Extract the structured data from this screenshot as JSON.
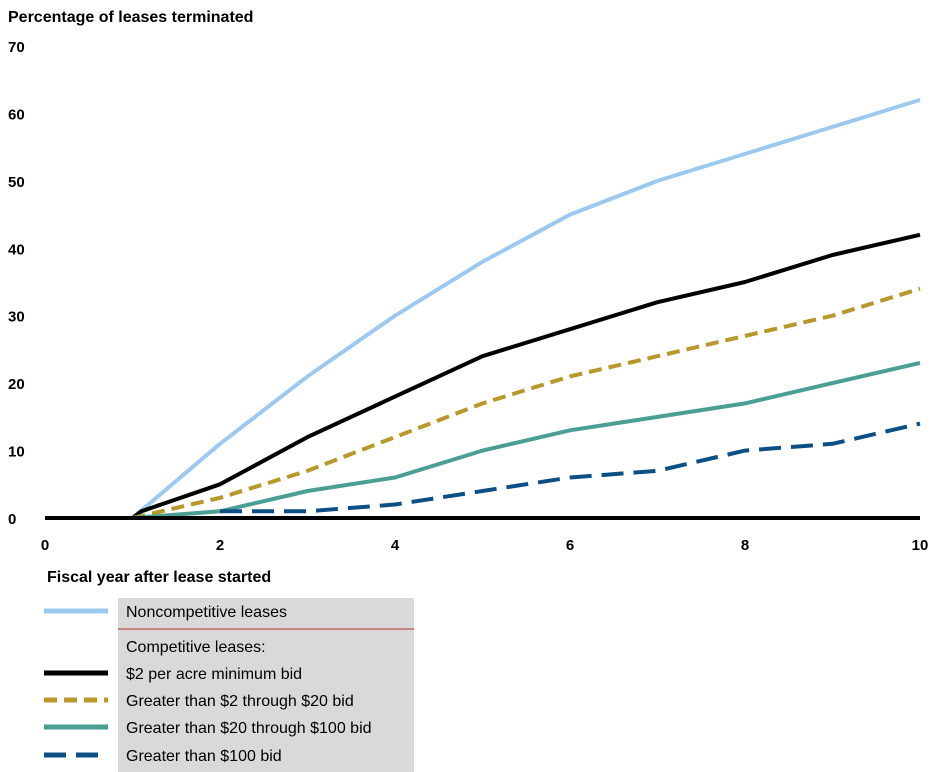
{
  "chart_data": {
    "type": "line",
    "ylabel": "Percentage of leases terminated",
    "xlabel": "Fiscal year after lease started",
    "xlim": [
      0,
      10
    ],
    "ylim": [
      0,
      70
    ],
    "x_ticks": [
      0,
      2,
      4,
      6,
      8,
      10
    ],
    "y_ticks": [
      0,
      10,
      20,
      30,
      40,
      50,
      60,
      70
    ],
    "grid": false,
    "legend_position": "bottom-left",
    "legend_group_label": "Competitive leases:",
    "series": [
      {
        "name": "Noncompetitive leases",
        "color": "#9cc9f0",
        "dash": "solid",
        "points": [
          [
            0,
            0
          ],
          [
            1,
            0
          ],
          [
            2,
            11
          ],
          [
            3,
            21
          ],
          [
            4,
            30
          ],
          [
            5,
            38
          ],
          [
            6,
            45
          ],
          [
            7,
            50
          ],
          [
            8,
            54
          ],
          [
            9,
            58
          ],
          [
            10,
            62
          ]
        ]
      },
      {
        "name": "$2 per acre minimum bid",
        "color": "#000000",
        "dash": "solid",
        "points": [
          [
            0,
            0
          ],
          [
            1,
            0
          ],
          [
            1.1,
            1
          ],
          [
            2,
            5
          ],
          [
            3,
            12
          ],
          [
            4,
            18
          ],
          [
            5,
            24
          ],
          [
            6,
            28
          ],
          [
            7,
            32
          ],
          [
            8,
            35
          ],
          [
            9,
            39
          ],
          [
            10,
            42
          ]
        ]
      },
      {
        "name": "Greater than $2 through $20 bid",
        "color": "#b8982a",
        "dash": "short",
        "points": [
          [
            1,
            0
          ],
          [
            2,
            3
          ],
          [
            3,
            7
          ],
          [
            4,
            12
          ],
          [
            5,
            17
          ],
          [
            6,
            21
          ],
          [
            7,
            24
          ],
          [
            8,
            27
          ],
          [
            9,
            30
          ],
          [
            10,
            34
          ]
        ]
      },
      {
        "name": "Greater than $20 through $100 bid",
        "color": "#4a9e94",
        "dash": "solid",
        "points": [
          [
            1,
            0
          ],
          [
            2,
            1
          ],
          [
            3,
            4
          ],
          [
            4,
            6
          ],
          [
            5,
            10
          ],
          [
            6,
            13
          ],
          [
            7,
            15
          ],
          [
            8,
            17
          ],
          [
            9,
            20
          ],
          [
            10,
            23
          ]
        ]
      },
      {
        "name": "Greater than $100 bid",
        "color": "#0b4f86",
        "dash": "long",
        "points": [
          [
            2,
            1
          ],
          [
            3,
            1
          ],
          [
            4,
            2
          ],
          [
            5,
            4
          ],
          [
            6,
            6
          ],
          [
            7,
            7
          ],
          [
            8,
            10
          ],
          [
            9,
            11
          ],
          [
            10,
            14
          ]
        ]
      }
    ]
  }
}
